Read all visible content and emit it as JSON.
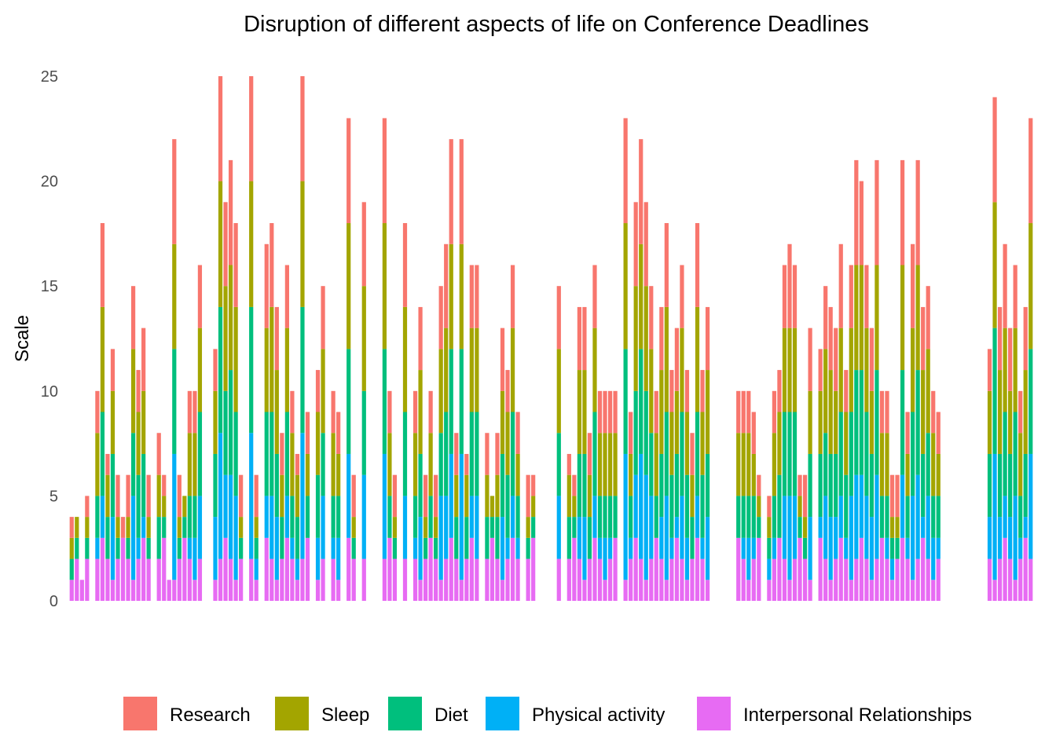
{
  "chart_data": {
    "type": "bar",
    "stacked": true,
    "title": "Disruption of different aspects of life on Conference Deadlines",
    "xlabel": "",
    "ylabel": "Scale",
    "ylim": [
      0,
      25
    ],
    "yticks": [
      0,
      5,
      10,
      15,
      20,
      25
    ],
    "grid": false,
    "legend_position": "bottom",
    "series": [
      {
        "name": "Research",
        "color": "#F8766D"
      },
      {
        "name": "Sleep",
        "color": "#A3A500"
      },
      {
        "name": "Diet",
        "color": "#00BF7D"
      },
      {
        "name": "Physical activity",
        "color": "#00B0F6"
      },
      {
        "name": "Interpersonal Relationships",
        "color": "#E76BF3"
      }
    ],
    "totals": [
      4,
      4,
      1,
      5,
      0,
      10,
      18,
      7,
      12,
      6,
      4,
      6,
      15,
      11,
      13,
      6,
      0,
      8,
      6,
      1,
      22,
      6,
      5,
      10,
      10,
      16,
      0,
      0,
      12,
      25,
      19,
      21,
      18,
      6,
      0,
      25,
      6,
      0,
      17,
      18,
      14,
      8,
      16,
      10,
      7,
      25,
      9,
      0,
      11,
      15,
      0,
      10,
      9,
      0,
      23,
      6,
      0,
      19,
      0,
      0,
      0,
      23,
      10,
      6,
      0,
      18,
      0,
      10,
      14,
      6,
      10,
      6,
      15,
      17,
      22,
      8,
      22,
      7,
      16,
      16,
      0,
      8,
      5,
      8,
      13,
      11,
      16,
      9,
      0,
      6,
      6,
      0,
      0,
      0,
      0,
      15,
      0,
      7,
      6,
      14,
      14,
      8,
      16,
      10,
      10,
      10,
      10,
      0,
      23,
      9,
      19,
      22,
      19,
      15,
      10,
      14,
      18,
      11,
      13,
      16,
      11,
      8,
      18,
      11,
      14,
      0,
      0,
      0,
      0,
      0,
      10,
      10,
      10,
      9,
      6,
      0,
      5,
      10,
      11,
      16,
      17,
      16,
      6,
      6,
      13,
      0,
      12,
      15,
      14,
      13,
      17,
      11,
      16,
      21,
      20,
      16,
      13,
      21,
      10,
      10,
      6,
      6,
      21,
      9,
      17,
      21,
      14,
      15,
      10,
      9,
      0,
      0,
      0,
      0,
      0,
      0,
      0,
      0,
      0,
      12,
      24,
      14,
      17,
      13,
      16,
      10,
      14,
      23
    ]
  }
}
